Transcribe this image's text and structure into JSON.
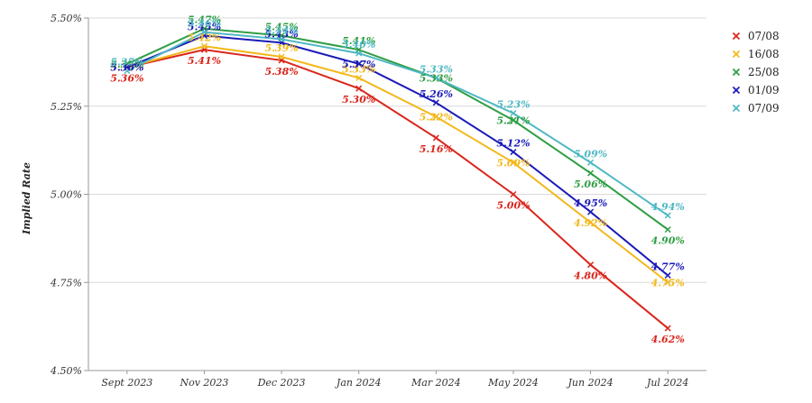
{
  "chart_data": {
    "type": "line",
    "title": "",
    "xlabel": "",
    "ylabel": "Implied Rate",
    "categories": [
      "Sept 2023",
      "Nov 2023",
      "Dec 2023",
      "Jan 2024",
      "Mar 2024",
      "May 2024",
      "Jun 2024",
      "Jul 2024"
    ],
    "ylim": [
      4.5,
      5.5
    ],
    "yticks": [
      4.5,
      4.75,
      5.0,
      5.25,
      5.5
    ],
    "ytick_labels": [
      "4.50%",
      "4.75%",
      "5.00%",
      "5.25%",
      "5.50%"
    ],
    "grid": true,
    "legend_position": "top-right",
    "series": [
      {
        "name": "07/08",
        "color": "#d9261c",
        "values": [
          5.36,
          5.41,
          5.38,
          5.3,
          5.16,
          5.0,
          4.8,
          4.62
        ],
        "labels": [
          "5.36%",
          "5.41%",
          "5.38%",
          "5.30%",
          "5.16%",
          "5.00%",
          "4.80%",
          "4.62%"
        ]
      },
      {
        "name": "16/08",
        "color": "#f2b81c",
        "values": [
          5.36,
          5.42,
          5.39,
          5.33,
          5.22,
          5.09,
          4.92,
          4.75
        ],
        "labels": [
          "5.36%",
          "5.42%",
          "5.39%",
          "5.33%",
          "5.22%",
          "5.09%",
          "4.92%",
          "4.75%"
        ]
      },
      {
        "name": "25/08",
        "color": "#2f9e44",
        "values": [
          5.37,
          5.47,
          5.45,
          5.41,
          5.33,
          5.21,
          5.06,
          4.9
        ],
        "labels": [
          "5.37%",
          "5.47%",
          "5.45%",
          "5.41%",
          "5.33%",
          "5.21%",
          "5.06%",
          "4.90%"
        ]
      },
      {
        "name": "01/09",
        "color": "#1a1ab8",
        "values": [
          5.36,
          5.45,
          5.43,
          5.37,
          5.26,
          5.12,
          4.95,
          4.77
        ],
        "labels": [
          "5.36%",
          "5.45%",
          "5.43%",
          "5.37%",
          "5.26%",
          "5.12%",
          "4.95%",
          "4.77%"
        ]
      },
      {
        "name": "07/09",
        "color": "#4fb8c4",
        "values": [
          5.35,
          5.46,
          5.44,
          5.4,
          5.33,
          5.23,
          5.09,
          4.94
        ],
        "labels": [
          "5.35%",
          "5.46%",
          "5.44%",
          "5.40%",
          "5.33%",
          "5.23%",
          "5.09%",
          "4.94%"
        ]
      }
    ]
  }
}
